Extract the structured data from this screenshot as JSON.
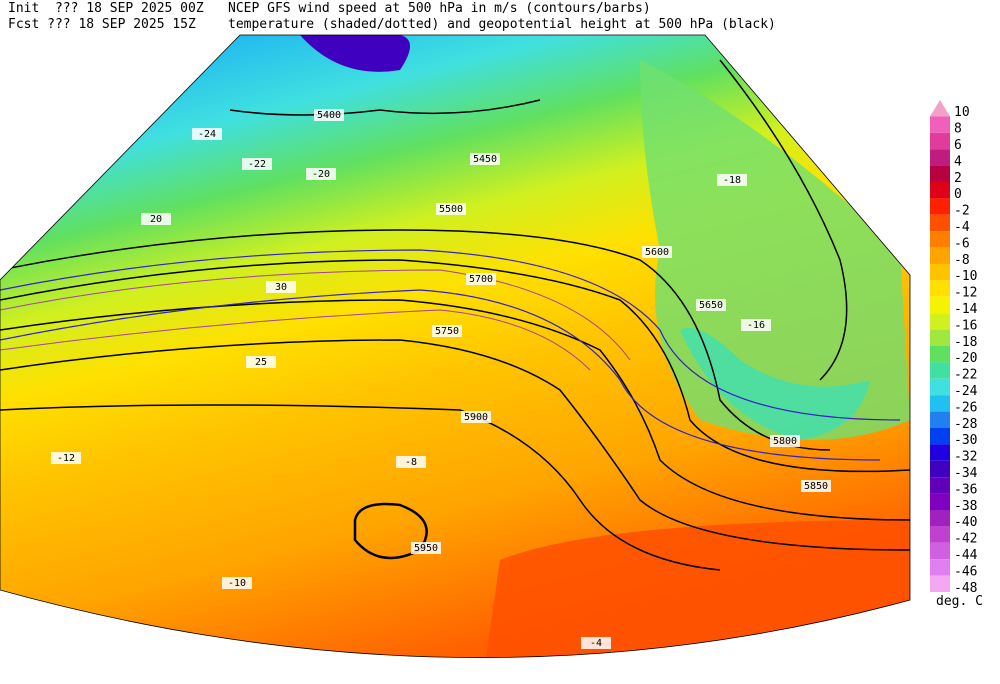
{
  "header": {
    "init": "Init  ??? 18 SEP 2025 00Z",
    "fcst": "Fcst ??? 18 SEP 2025 15Z",
    "title_line1": "NCEP GFS wind speed at 500 hPa in m/s (contours/barbs)",
    "title_line2": "temperature (shaded/dotted) and geopotential height at 500 hPa (black)"
  },
  "colorbar": {
    "unit": "deg. C",
    "items": [
      {
        "label": "10",
        "color": "#f4a0c8"
      },
      {
        "label": "8",
        "color": "#f060b8"
      },
      {
        "label": "6",
        "color": "#e03c9c"
      },
      {
        "label": "4",
        "color": "#c01c80"
      },
      {
        "label": "2",
        "color": "#b80040"
      },
      {
        "label": "0",
        "color": "#e00018"
      },
      {
        "label": "-2",
        "color": "#ff2000"
      },
      {
        "label": "-4",
        "color": "#ff5000"
      },
      {
        "label": "-6",
        "color": "#ff8000"
      },
      {
        "label": "-8",
        "color": "#ffa400"
      },
      {
        "label": "-10",
        "color": "#ffc400"
      },
      {
        "label": "-12",
        "color": "#ffe000"
      },
      {
        "label": "-14",
        "color": "#f4f400"
      },
      {
        "label": "-16",
        "color": "#d0f020"
      },
      {
        "label": "-18",
        "color": "#a0e840"
      },
      {
        "label": "-20",
        "color": "#60e060"
      },
      {
        "label": "-22",
        "color": "#40e0a0"
      },
      {
        "label": "-24",
        "color": "#40e0e0"
      },
      {
        "label": "-26",
        "color": "#20c0f0"
      },
      {
        "label": "-28",
        "color": "#2080f0"
      },
      {
        "label": "-30",
        "color": "#0040f0"
      },
      {
        "label": "-32",
        "color": "#2000e0"
      },
      {
        "label": "-34",
        "color": "#4000c0"
      },
      {
        "label": "-36",
        "color": "#6000b8"
      },
      {
        "label": "-38",
        "color": "#8000c0"
      },
      {
        "label": "-40",
        "color": "#a020c0"
      },
      {
        "label": "-42",
        "color": "#c040d0"
      },
      {
        "label": "-44",
        "color": "#d060e0"
      },
      {
        "label": "-46",
        "color": "#e080f0"
      },
      {
        "label": "-48",
        "color": "#f4a8f4"
      }
    ]
  },
  "map_labels": [
    "5400",
    "5450",
    "5500",
    "5600",
    "5650",
    "5700",
    "5750",
    "5800",
    "5850",
    "5900",
    "5950",
    "-24",
    "-22",
    "-20",
    "-18",
    "-16",
    "-12",
    "-10",
    "-8",
    "-4",
    "20",
    "25",
    "30"
  ]
}
